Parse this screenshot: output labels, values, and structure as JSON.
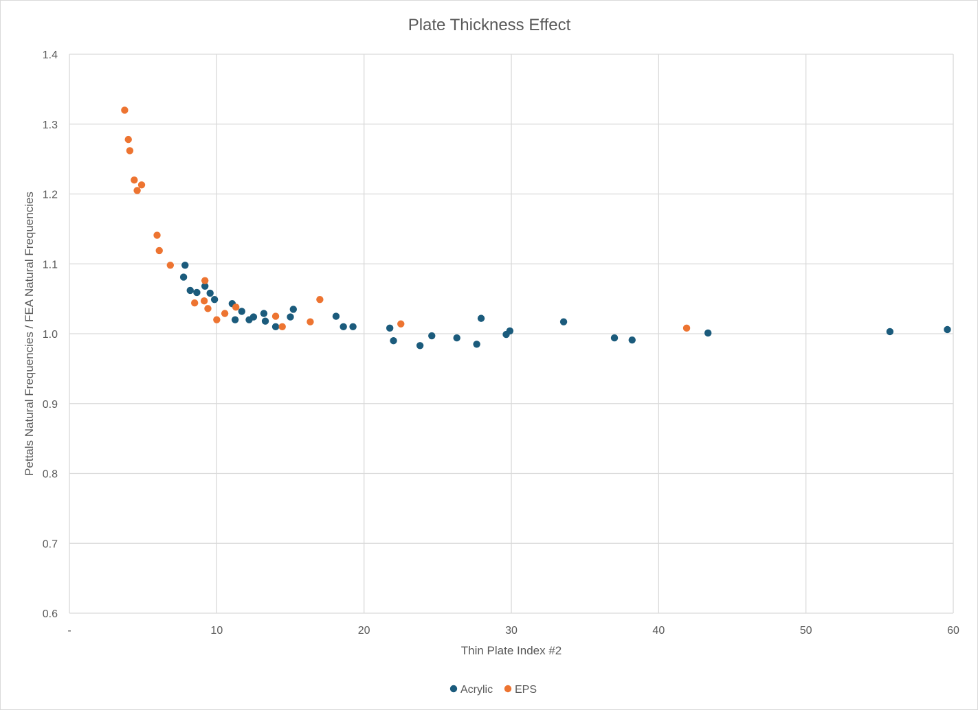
{
  "chart_data": {
    "type": "scatter",
    "title": "Plate Thickness Effect",
    "xlabel": "Thin Plate Index #2",
    "ylabel": "Pettals Natural Frequencies / FEA Natural Frequencies",
    "xlim": [
      0,
      60
    ],
    "ylim": [
      0.6,
      1.4
    ],
    "x_ticks": [
      0,
      10,
      20,
      30,
      40,
      50,
      60
    ],
    "x_tick_labels": [
      "-",
      "10",
      "20",
      "30",
      "40",
      "50",
      "60"
    ],
    "y_ticks": [
      0.6,
      0.7,
      0.8,
      0.9,
      1.0,
      1.1,
      1.2,
      1.3,
      1.4
    ],
    "y_tick_labels": [
      "0.6",
      "0.7",
      "0.8",
      "0.9",
      "1.0",
      "1.1",
      "1.2",
      "1.3",
      "1.4"
    ],
    "grid": true,
    "legend_position": "bottom",
    "series": [
      {
        "name": "Acrylic",
        "color": "#1b5b7c",
        "points": [
          [
            7.85,
            1.098
          ],
          [
            7.75,
            1.081
          ],
          [
            8.2,
            1.062
          ],
          [
            8.65,
            1.059
          ],
          [
            9.2,
            1.068
          ],
          [
            9.55,
            1.058
          ],
          [
            9.85,
            1.049
          ],
          [
            11.05,
            1.043
          ],
          [
            11.25,
            1.02
          ],
          [
            11.7,
            1.032
          ],
          [
            12.2,
            1.02
          ],
          [
            12.5,
            1.024
          ],
          [
            13.2,
            1.029
          ],
          [
            13.3,
            1.018
          ],
          [
            14.0,
            1.01
          ],
          [
            15.0,
            1.024
          ],
          [
            15.2,
            1.035
          ],
          [
            18.1,
            1.025
          ],
          [
            18.6,
            1.01
          ],
          [
            19.25,
            1.01
          ],
          [
            21.75,
            1.008
          ],
          [
            22.0,
            0.99
          ],
          [
            23.8,
            0.983
          ],
          [
            24.6,
            0.997
          ],
          [
            26.3,
            0.994
          ],
          [
            27.65,
            0.985
          ],
          [
            27.95,
            1.022
          ],
          [
            29.65,
            0.999
          ],
          [
            29.9,
            1.004
          ],
          [
            33.55,
            1.017
          ],
          [
            37.0,
            0.994
          ],
          [
            38.2,
            0.991
          ],
          [
            43.35,
            1.001
          ],
          [
            55.7,
            1.003
          ],
          [
            59.6,
            1.006
          ]
        ]
      },
      {
        "name": "EPS",
        "color": "#ed7431",
        "points": [
          [
            3.75,
            1.32
          ],
          [
            4.0,
            1.278
          ],
          [
            4.1,
            1.262
          ],
          [
            4.4,
            1.22
          ],
          [
            4.6,
            1.205
          ],
          [
            4.9,
            1.213
          ],
          [
            5.95,
            1.141
          ],
          [
            6.1,
            1.119
          ],
          [
            6.85,
            1.098
          ],
          [
            8.5,
            1.044
          ],
          [
            9.15,
            1.047
          ],
          [
            9.2,
            1.076
          ],
          [
            9.4,
            1.036
          ],
          [
            10.0,
            1.02
          ],
          [
            10.55,
            1.029
          ],
          [
            11.3,
            1.038
          ],
          [
            14.0,
            1.025
          ],
          [
            14.45,
            1.01
          ],
          [
            16.35,
            1.017
          ],
          [
            17.0,
            1.049
          ],
          [
            22.5,
            1.014
          ],
          [
            41.9,
            1.008
          ]
        ]
      }
    ]
  }
}
